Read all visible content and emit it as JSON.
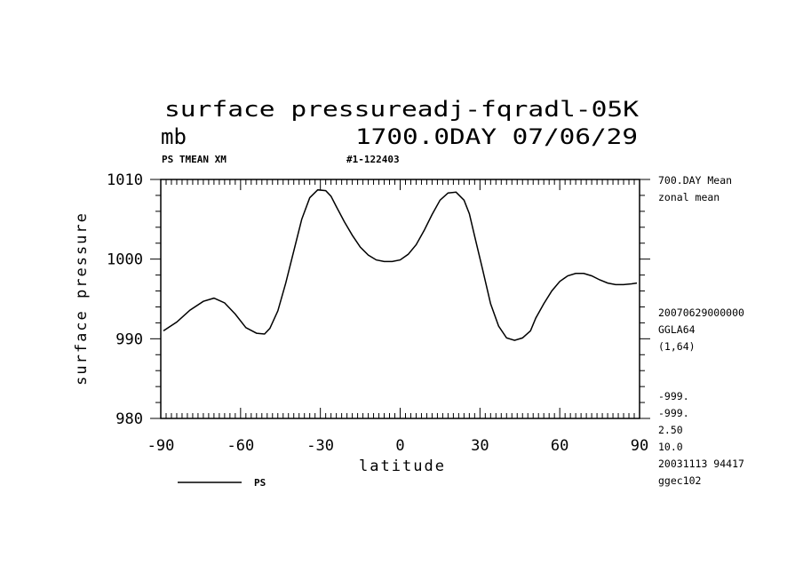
{
  "header": {
    "title": "surface pressureadj-fqradl-05K",
    "units": "mb",
    "day_label": "1700.0DAY 07/06/29",
    "variable_label": "PS TMEAN XM",
    "run_label": "#1-122403"
  },
  "side_info": {
    "lines_top": [
      "700.DAY Mean",
      "zonal mean"
    ],
    "lines_mid": [
      "20070629000000",
      "GGLA64",
      "(1,64)"
    ],
    "lines_bottom": [
      "-999.",
      "-999.",
      "2.50",
      "10.0",
      "20031113  94417",
      "ggec102"
    ]
  },
  "chart_data": {
    "type": "line",
    "xlabel": "latitude",
    "ylabel": "surface pressure",
    "xlim": [
      -90,
      90
    ],
    "ylim": [
      980,
      1010
    ],
    "x_ticks": [
      -90,
      -60,
      -30,
      0,
      30,
      60,
      90
    ],
    "x_tick_labels": [
      "-90",
      "-60",
      "-30",
      "0",
      "30",
      "60",
      "90"
    ],
    "y_ticks": [
      980,
      990,
      1000,
      1010
    ],
    "y_tick_labels": [
      "980",
      "990",
      "1000",
      "1010"
    ],
    "legend": {
      "placement": "bottom-left",
      "label": "PS"
    },
    "series": [
      {
        "name": "PS",
        "x": [
          -89,
          -84,
          -79,
          -74,
          -70,
          -66,
          -62,
          -58,
          -54,
          -51,
          -49,
          -46,
          -43,
          -40,
          -37,
          -34,
          -31,
          -28,
          -26,
          -24,
          -21,
          -18,
          -15,
          -12,
          -9,
          -6,
          -3,
          0,
          3,
          6,
          9,
          12,
          15,
          18,
          21,
          24,
          26,
          28,
          31,
          34,
          37,
          40,
          43,
          46,
          49,
          51,
          54,
          57,
          60,
          63,
          66,
          69,
          72,
          75,
          78,
          81,
          84,
          87,
          89
        ],
        "values": [
          991.0,
          992.1,
          993.6,
          994.7,
          995.1,
          994.5,
          993.1,
          991.4,
          990.7,
          990.6,
          991.3,
          993.5,
          997.0,
          1001.0,
          1005.0,
          1007.7,
          1008.7,
          1008.6,
          1007.9,
          1006.6,
          1004.7,
          1003.0,
          1001.5,
          1000.5,
          999.9,
          999.7,
          999.7,
          999.9,
          1000.6,
          1001.8,
          1003.6,
          1005.6,
          1007.4,
          1008.3,
          1008.4,
          1007.4,
          1005.7,
          1002.9,
          998.7,
          994.4,
          991.6,
          990.1,
          989.8,
          990.1,
          991.0,
          992.6,
          994.4,
          996.0,
          997.2,
          997.9,
          998.2,
          998.2,
          997.9,
          997.4,
          997.0,
          996.8,
          996.8,
          996.9,
          997.0
        ]
      }
    ]
  }
}
